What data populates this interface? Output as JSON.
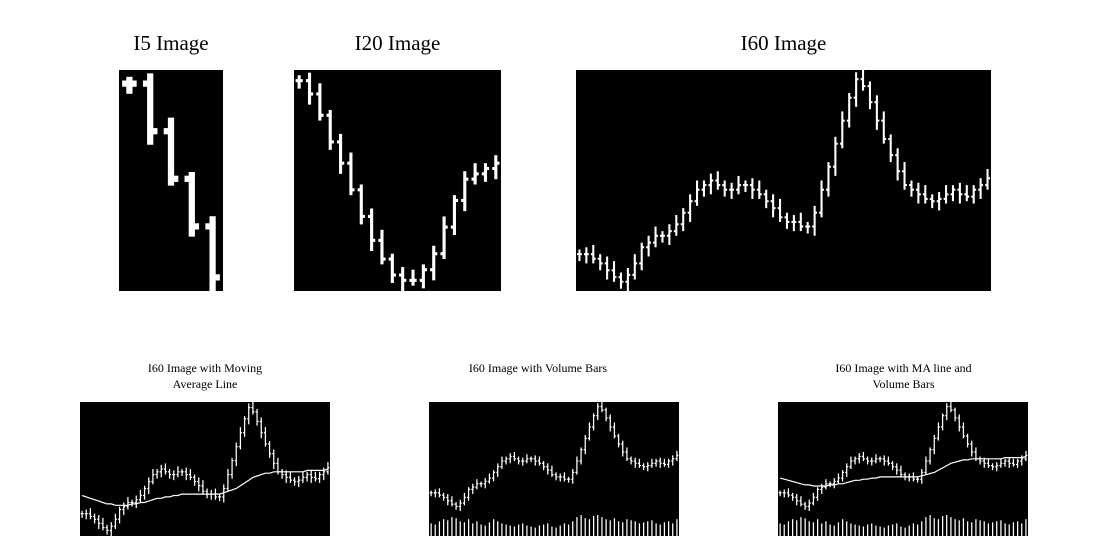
{
  "colors": {
    "background": "#ffffff",
    "panel": "#000000",
    "ink": "#ffffff"
  },
  "panels": [
    {
      "id": "i5",
      "title": "I5 Image",
      "type": "ohlc",
      "days": 5
    },
    {
      "id": "i20",
      "title": "I20 Image",
      "type": "ohlc",
      "days": 20
    },
    {
      "id": "i60",
      "title": "I60 Image",
      "type": "ohlc",
      "days": 60
    },
    {
      "id": "i60ma",
      "title": "I60 Image with Moving Average Line",
      "type": "ohlc",
      "days": 60,
      "moving_average": true,
      "volume": false
    },
    {
      "id": "i60vol",
      "title": "I60 Image with Volume Bars",
      "type": "ohlc",
      "days": 60,
      "moving_average": false,
      "volume": true
    },
    {
      "id": "i60mav",
      "title": "I60 Image with MA line and Volume Bars",
      "type": "ohlc",
      "days": 60,
      "moving_average": true,
      "volume": true
    }
  ],
  "chart_data": [
    {
      "type": "ohlc",
      "title": "I5 Image",
      "days": 5,
      "axes": "none",
      "grid": false,
      "close": [
        98,
        84,
        70,
        56,
        41
      ]
    },
    {
      "type": "ohlc",
      "title": "I20 Image",
      "days": 20,
      "axes": "none",
      "grid": false,
      "close": [
        97,
        92,
        84,
        74,
        66,
        56,
        46,
        37,
        30,
        24,
        22,
        22,
        26,
        32,
        42,
        52,
        60,
        62,
        64,
        66
      ]
    },
    {
      "type": "ohlc",
      "title": "I60 Image",
      "days": 60,
      "axes": "none",
      "grid": false,
      "close": [
        22,
        22,
        20,
        18,
        15,
        12,
        10,
        13,
        18,
        25,
        27,
        30,
        30,
        32,
        35,
        40,
        45,
        50,
        52,
        54,
        52,
        50,
        50,
        52,
        52,
        50,
        48,
        45,
        42,
        38,
        36,
        36,
        34,
        34,
        40,
        50,
        60,
        70,
        80,
        90,
        98,
        95,
        88,
        80,
        72,
        65,
        58,
        52,
        50,
        48,
        46,
        45,
        46,
        48,
        50,
        48,
        47,
        50,
        52,
        55
      ]
    },
    {
      "type": "ohlc",
      "title": "I60 Image with Moving Average Line",
      "days": 60,
      "axes": "none",
      "grid": false,
      "close": [
        22,
        22,
        20,
        18,
        15,
        12,
        10,
        13,
        18,
        25,
        27,
        30,
        30,
        32,
        35,
        40,
        45,
        50,
        52,
        54,
        52,
        50,
        50,
        52,
        52,
        50,
        48,
        45,
        42,
        38,
        36,
        36,
        34,
        34,
        40,
        50,
        60,
        70,
        80,
        90,
        98,
        95,
        88,
        80,
        72,
        65,
        58,
        52,
        50,
        48,
        46,
        45,
        46,
        48,
        50,
        48,
        47,
        50,
        52,
        55
      ],
      "moving_average": [
        35,
        34,
        33,
        32,
        31,
        30,
        29,
        29,
        28,
        28,
        28,
        28,
        29,
        29,
        30,
        30,
        31,
        32,
        33,
        33,
        34,
        34,
        35,
        35,
        36,
        36,
        36,
        36,
        36,
        36,
        36,
        36,
        36,
        36,
        37,
        38,
        39,
        40,
        42,
        44,
        46,
        48,
        49,
        50,
        51,
        51,
        52,
        52,
        52,
        52,
        52,
        52,
        52,
        52,
        53,
        53,
        53,
        53,
        53,
        54
      ]
    },
    {
      "type": "ohlc",
      "title": "I60 Image with Volume Bars",
      "days": 60,
      "axes": "none",
      "grid": false,
      "close": [
        22,
        22,
        20,
        18,
        15,
        12,
        10,
        13,
        18,
        25,
        27,
        30,
        30,
        32,
        35,
        40,
        45,
        50,
        52,
        54,
        52,
        50,
        50,
        52,
        52,
        50,
        48,
        45,
        42,
        38,
        36,
        36,
        34,
        34,
        40,
        50,
        60,
        70,
        80,
        90,
        98,
        95,
        88,
        80,
        72,
        65,
        58,
        52,
        50,
        48,
        46,
        45,
        46,
        48,
        50,
        48,
        47,
        50,
        52,
        55
      ],
      "volume": [
        60,
        55,
        70,
        80,
        75,
        90,
        85,
        70,
        65,
        80,
        60,
        70,
        55,
        50,
        65,
        80,
        70,
        60,
        55,
        50,
        45,
        55,
        60,
        50,
        45,
        40,
        50,
        55,
        60,
        45,
        40,
        50,
        60,
        55,
        70,
        90,
        100,
        85,
        80,
        95,
        100,
        90,
        80,
        75,
        85,
        70,
        65,
        80,
        75,
        70,
        60,
        65,
        70,
        75,
        60,
        55,
        65,
        70,
        60,
        80
      ]
    },
    {
      "type": "ohlc",
      "title": "I60 Image with MA line and Volume Bars",
      "days": 60,
      "axes": "none",
      "grid": false,
      "close": [
        22,
        22,
        20,
        18,
        15,
        12,
        10,
        13,
        18,
        25,
        27,
        30,
        30,
        32,
        35,
        40,
        45,
        50,
        52,
        54,
        52,
        50,
        50,
        52,
        52,
        50,
        48,
        45,
        42,
        38,
        36,
        36,
        34,
        34,
        40,
        50,
        60,
        70,
        80,
        90,
        98,
        95,
        88,
        80,
        72,
        65,
        58,
        52,
        50,
        48,
        46,
        45,
        46,
        48,
        50,
        48,
        47,
        50,
        52,
        55
      ],
      "moving_average": [
        35,
        34,
        33,
        32,
        31,
        30,
        29,
        29,
        28,
        28,
        28,
        28,
        29,
        29,
        30,
        30,
        31,
        32,
        33,
        33,
        34,
        34,
        35,
        35,
        36,
        36,
        36,
        36,
        36,
        36,
        36,
        36,
        36,
        36,
        37,
        38,
        39,
        40,
        42,
        44,
        46,
        48,
        49,
        50,
        51,
        51,
        52,
        52,
        52,
        52,
        52,
        52,
        52,
        52,
        53,
        53,
        53,
        53,
        53,
        54
      ],
      "volume": [
        60,
        55,
        70,
        80,
        75,
        90,
        85,
        70,
        65,
        80,
        60,
        70,
        55,
        50,
        65,
        80,
        70,
        60,
        55,
        50,
        45,
        55,
        60,
        50,
        45,
        40,
        50,
        55,
        60,
        45,
        40,
        50,
        60,
        55,
        70,
        90,
        100,
        85,
        80,
        95,
        100,
        90,
        80,
        75,
        85,
        70,
        65,
        80,
        75,
        70,
        60,
        65,
        70,
        75,
        60,
        55,
        65,
        70,
        60,
        80
      ]
    }
  ]
}
